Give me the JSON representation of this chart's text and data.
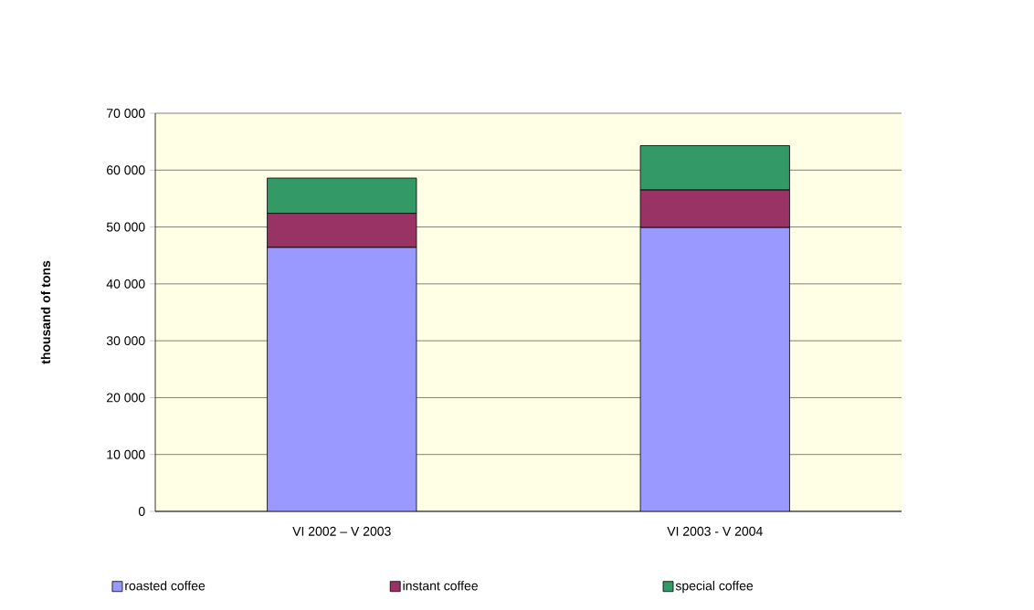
{
  "chart_data": {
    "type": "bar",
    "stacked": true,
    "ylabel": "thousand of tons",
    "categories": [
      "VI 2002 – V 2003",
      "VI 2003 - V 2004"
    ],
    "series": [
      {
        "name": "roasted coffee",
        "color": "#9999ff",
        "values": [
          46400,
          49900
        ]
      },
      {
        "name": "instant coffee",
        "color": "#993366",
        "values": [
          6000,
          6600
        ]
      },
      {
        "name": "special coffee",
        "color": "#339966",
        "values": [
          6200,
          7800
        ]
      }
    ],
    "ylim": [
      0,
      70000
    ],
    "yticks": [
      0,
      {
        "value": 10000,
        "label": "10 000"
      },
      {
        "value": 20000,
        "label": "20 000"
      },
      {
        "value": 30000,
        "label": "30 000"
      },
      {
        "value": 40000,
        "label": "40 000"
      },
      {
        "value": 50000,
        "label": "50 000"
      },
      {
        "value": 60000,
        "label": "60 000"
      },
      {
        "value": 70000,
        "label": "70 000"
      }
    ],
    "grid": "y",
    "legend": "bottom"
  }
}
